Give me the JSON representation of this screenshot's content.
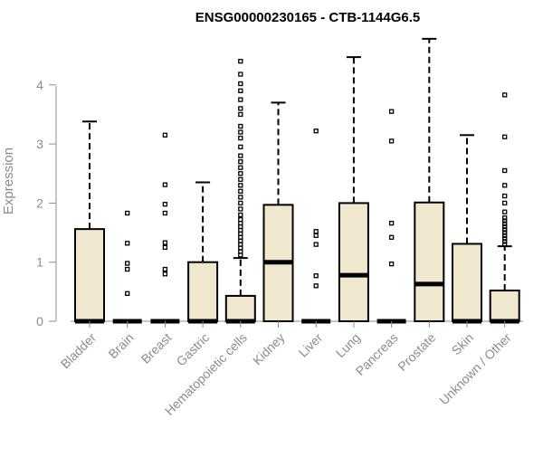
{
  "chart_data": {
    "type": "boxplot",
    "title": "ENSG00000230165 - CTB-1144G6.5",
    "ylabel": "Expression",
    "xlabel": "",
    "ylim": [
      0,
      4.5
    ],
    "yticks": [
      0,
      1,
      2,
      3,
      4
    ],
    "grid": false,
    "legend": "none",
    "box_fill": "#efe8cf",
    "categories": [
      "Bladder",
      "Brain",
      "Breast",
      "Gastric",
      "Hematopoietic cells",
      "Kidney",
      "Liver",
      "Lung",
      "Pancreas",
      "Prostate",
      "Skin",
      "Unknown / Other"
    ],
    "boxes": [
      {
        "category": "Bladder",
        "whisker_low": 0,
        "q1": 0,
        "median": 0,
        "q3": 1.56,
        "whisker_high": 3.38,
        "outliers": []
      },
      {
        "category": "Brain",
        "whisker_low": 0,
        "q1": 0,
        "median": 0,
        "q3": 0,
        "whisker_high": 0,
        "outliers": [
          0.47,
          0.88,
          0.98,
          1.32,
          1.83
        ]
      },
      {
        "category": "Breast",
        "whisker_low": 0,
        "q1": 0,
        "median": 0,
        "q3": 0,
        "whisker_high": 0,
        "outliers": [
          0.8,
          0.88,
          1.25,
          1.33,
          1.83,
          1.98,
          2.31,
          3.15
        ]
      },
      {
        "category": "Gastric",
        "whisker_low": 0,
        "q1": 0,
        "median": 0,
        "q3": 1.0,
        "whisker_high": 2.35,
        "outliers": []
      },
      {
        "category": "Hematopoietic cells",
        "whisker_low": 0,
        "q1": 0,
        "median": 0,
        "q3": 0.43,
        "whisker_high": 1.07,
        "outliers": [
          1.12,
          1.18,
          1.24,
          1.3,
          1.36,
          1.42,
          1.48,
          1.54,
          1.6,
          1.66,
          1.72,
          1.8,
          1.9,
          2.0,
          2.1,
          2.2,
          2.3,
          2.4,
          2.5,
          2.6,
          2.7,
          2.8,
          2.95,
          3.1,
          3.2,
          3.3,
          3.5,
          3.6,
          3.75,
          3.9,
          4.02,
          4.18,
          4.4
        ]
      },
      {
        "category": "Kidney",
        "whisker_low": 0,
        "q1": 0,
        "median": 1.0,
        "q3": 1.97,
        "whisker_high": 3.7,
        "outliers": []
      },
      {
        "category": "Liver",
        "whisker_low": 0,
        "q1": 0,
        "median": 0,
        "q3": 0,
        "whisker_high": 0,
        "outliers": [
          0.6,
          0.77,
          1.3,
          1.45,
          1.52,
          3.22
        ]
      },
      {
        "category": "Lung",
        "whisker_low": 0,
        "q1": 0,
        "median": 0.78,
        "q3": 2.0,
        "whisker_high": 4.47,
        "outliers": []
      },
      {
        "category": "Pancreas",
        "whisker_low": 0,
        "q1": 0,
        "median": 0,
        "q3": 0,
        "whisker_high": 0,
        "outliers": [
          0.97,
          1.42,
          1.66,
          3.05,
          3.55
        ]
      },
      {
        "category": "Prostate",
        "whisker_low": 0,
        "q1": 0,
        "median": 0.63,
        "q3": 2.01,
        "whisker_high": 4.78,
        "outliers": []
      },
      {
        "category": "Skin",
        "whisker_low": 0,
        "q1": 0,
        "median": 0,
        "q3": 1.31,
        "whisker_high": 3.15,
        "outliers": []
      },
      {
        "category": "Unknown / Other",
        "whisker_low": 0,
        "q1": 0,
        "median": 0,
        "q3": 0.52,
        "whisker_high": 1.27,
        "outliers": [
          1.3,
          1.35,
          1.4,
          1.45,
          1.5,
          1.55,
          1.6,
          1.65,
          1.7,
          1.75,
          1.85,
          2.0,
          2.12,
          2.3,
          2.55,
          3.12,
          3.83
        ]
      }
    ]
  }
}
